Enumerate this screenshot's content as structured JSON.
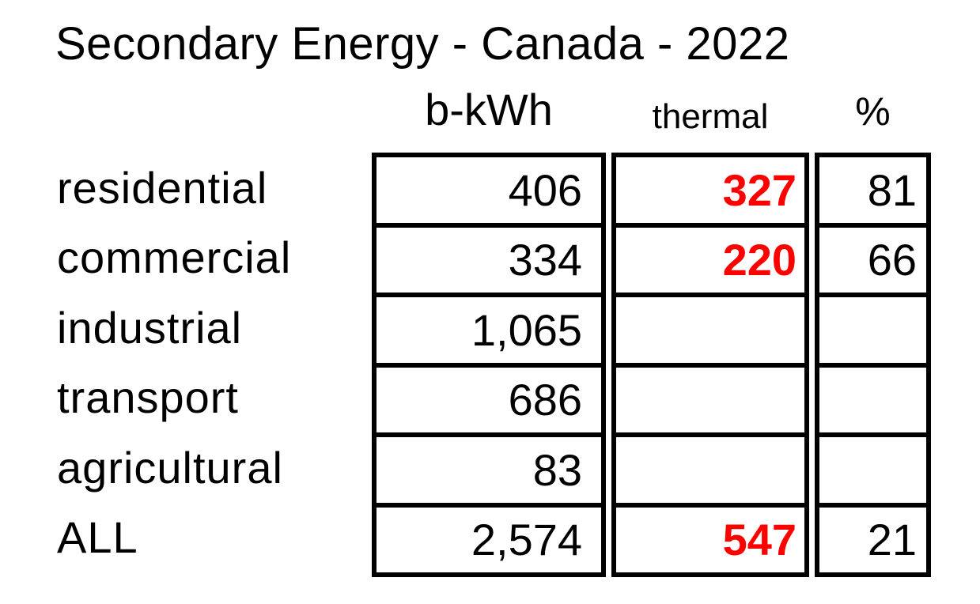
{
  "title": "Secondary Energy - Canada - 2022",
  "columns": {
    "bkwh": "b-kWh",
    "thermal": "thermal",
    "percent": "%"
  },
  "rows": [
    {
      "label": "residential",
      "bkwh": "406",
      "thermal": "327",
      "percent": "81"
    },
    {
      "label": "commercial",
      "bkwh": "334",
      "thermal": "220",
      "percent": "66"
    },
    {
      "label": "industrial",
      "bkwh": "1,065",
      "thermal": "",
      "percent": ""
    },
    {
      "label": "transport",
      "bkwh": "686",
      "thermal": "",
      "percent": ""
    },
    {
      "label": "agricultural",
      "bkwh": "83",
      "thermal": "",
      "percent": ""
    },
    {
      "label": "ALL",
      "bkwh": "2,574",
      "thermal": "547",
      "percent": "21"
    }
  ],
  "colors": {
    "text": "#000000",
    "border": "#000000",
    "thermal_value": "#ff0000",
    "background": "#ffffff"
  },
  "chart_data": {
    "type": "table",
    "title": "Secondary Energy - Canada - 2022",
    "columns": [
      "b-kWh",
      "thermal",
      "%"
    ],
    "categories": [
      "residential",
      "commercial",
      "industrial",
      "transport",
      "agricultural",
      "ALL"
    ],
    "series": [
      {
        "name": "b-kWh",
        "values": [
          406,
          334,
          1065,
          686,
          83,
          2574
        ]
      },
      {
        "name": "thermal",
        "values": [
          327,
          220,
          null,
          null,
          null,
          547
        ]
      },
      {
        "name": "%",
        "values": [
          81,
          66,
          null,
          null,
          null,
          21
        ]
      }
    ],
    "layout": {
      "row_labels_outside_border": true,
      "thermal_values_style": "bold red",
      "grid": "thick black cell borders, gaps between columns"
    }
  }
}
